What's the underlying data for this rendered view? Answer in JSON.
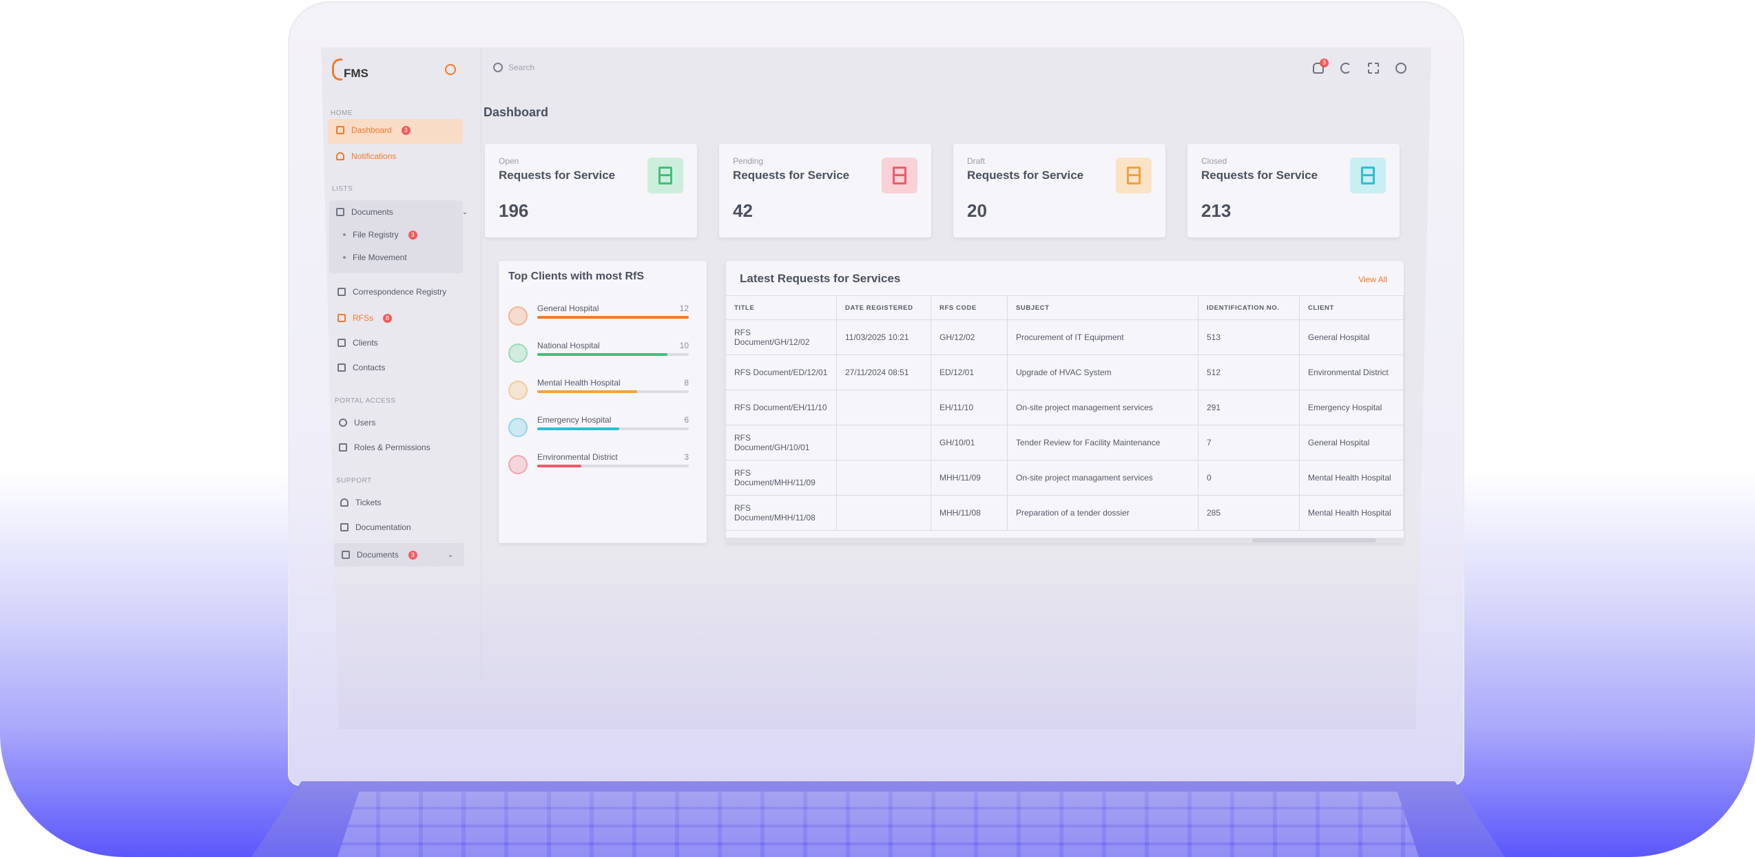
{
  "app": {
    "name": "FMS"
  },
  "sidebar": {
    "sections": {
      "home": "HOME",
      "lists": "LISTS",
      "portal": "PORTAL ACCESS",
      "support": "SUPPORT"
    },
    "dashboard": {
      "label": "Dashboard",
      "badge": "3"
    },
    "notifications": {
      "label": "Notifications"
    },
    "documents": {
      "label": "Documents",
      "sub": [
        {
          "label": "File Registry",
          "badge": "3"
        },
        {
          "label": "File Movement"
        }
      ]
    },
    "correspondence": {
      "label": "Correspondence Registry"
    },
    "rfs": {
      "label": "RFSs",
      "badge": "8"
    },
    "clients": {
      "label": "Clients"
    },
    "contacts": {
      "label": "Contacts"
    },
    "users": {
      "label": "Users"
    },
    "roles": {
      "label": "Roles & Permissions"
    },
    "tickets": {
      "label": "Tickets"
    },
    "documentation": {
      "label": "Documentation"
    },
    "documents2": {
      "label": "Documents",
      "badge": "3"
    }
  },
  "topbar": {
    "search_placeholder": "Search",
    "notif_badge": "3"
  },
  "page": {
    "title": "Dashboard"
  },
  "stats": [
    {
      "label": "Open",
      "title": "Requests for Service",
      "value": "196",
      "color": "#3fc27a",
      "bg": "#cdeedc"
    },
    {
      "label": "Pending",
      "title": "Requests for Service",
      "value": "42",
      "color": "#ee5a6a",
      "bg": "#f8d2d6"
    },
    {
      "label": "Draft",
      "title": "Requests for Service",
      "value": "20",
      "color": "#f2a33a",
      "bg": "#fbe3c6"
    },
    {
      "label": "Closed",
      "title": "Requests for Service",
      "value": "213",
      "color": "#2cbfd6",
      "bg": "#c9eef4"
    }
  ],
  "top_clients": {
    "title": "Top Clients with most RfS",
    "items": [
      {
        "name": "General Hospital",
        "count": "12",
        "pct": 1.0,
        "color": "#f27a2b"
      },
      {
        "name": "National Hospital",
        "count": "10",
        "pct": 0.86,
        "color": "#3fc27a"
      },
      {
        "name": "Mental Health Hospital",
        "count": "8",
        "pct": 0.66,
        "color": "#f2a33a"
      },
      {
        "name": "Emergency Hospital",
        "count": "6",
        "pct": 0.54,
        "color": "#2cbfd6"
      },
      {
        "name": "Environmental District",
        "count": "3",
        "pct": 0.29,
        "color": "#ee5a6a"
      }
    ]
  },
  "latest": {
    "title": "Latest Requests for Services",
    "view_all": "View All",
    "columns": [
      "TITLE",
      "DATE REGISTERED",
      "RFS CODE",
      "SUBJECT",
      "IDENTIFICATION NO.",
      "CLIENT"
    ],
    "rows": [
      [
        "RFS Document/GH/12/02",
        "11/03/2025 10:21",
        "GH/12/02",
        "Procurement of IT Equipment",
        "513",
        "General Hospital"
      ],
      [
        "RFS Document/ED/12/01",
        "27/11/2024 08:51",
        "ED/12/01",
        "Upgrade of HVAC System",
        "512",
        "Environmental District"
      ],
      [
        "RFS Document/EH/11/10",
        "",
        "EH/11/10",
        "On-site project management services",
        "291",
        "Emergency Hospital"
      ],
      [
        "RFS Document/GH/10/01",
        "",
        "GH/10/01",
        "Tender Review for Facility Maintenance",
        "7",
        "General Hospital"
      ],
      [
        "RFS Document/MHH/11/09",
        "",
        "MHH/11/09",
        "On-site project managament services",
        "0",
        "Mental Health Hospital"
      ],
      [
        "RFS Document/MHH/11/08",
        "",
        "MHH/11/08",
        "Preparation of a tender dossier",
        "285",
        "Mental Health Hospital"
      ]
    ]
  }
}
